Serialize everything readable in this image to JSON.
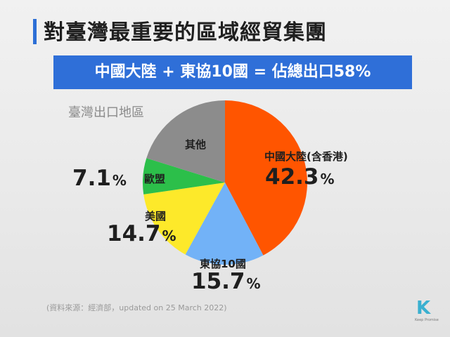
{
  "title": "對臺灣最重要的區域經貿集團",
  "banner": "中國大陸 + 東協10國 = 佔總出口58%",
  "subtitle": "臺灣出口地區",
  "footnote": "(資料來源：經濟部，updated on 25 March 2022)",
  "logo": {
    "mark": "K",
    "tagline": "Keep Promise"
  },
  "chart_data": {
    "type": "pie",
    "title": "臺灣出口地區",
    "unit": "%",
    "slices": [
      {
        "name": "中國大陸(含香港)",
        "value": 42.3,
        "color": "#ff5500"
      },
      {
        "name": "東協10國",
        "value": 15.7,
        "color": "#72b2f7"
      },
      {
        "name": "美國",
        "value": 14.7,
        "color": "#fde92a"
      },
      {
        "name": "歐盟",
        "value": 7.1,
        "color": "#2cbf4a"
      },
      {
        "name": "其他",
        "value": null,
        "color": "#8c8c8c"
      }
    ]
  },
  "labels": {
    "china": {
      "name": "中國大陸(含香港)",
      "value": "42.3",
      "sign": "%"
    },
    "asean": {
      "name": "東協10國",
      "value": "15.7",
      "sign": "%"
    },
    "usa": {
      "name": "美國",
      "value": "14.7",
      "sign": "%"
    },
    "eu": {
      "name": "歐盟",
      "value": "7.1",
      "sign": "%"
    },
    "other": {
      "name": "其他"
    }
  }
}
